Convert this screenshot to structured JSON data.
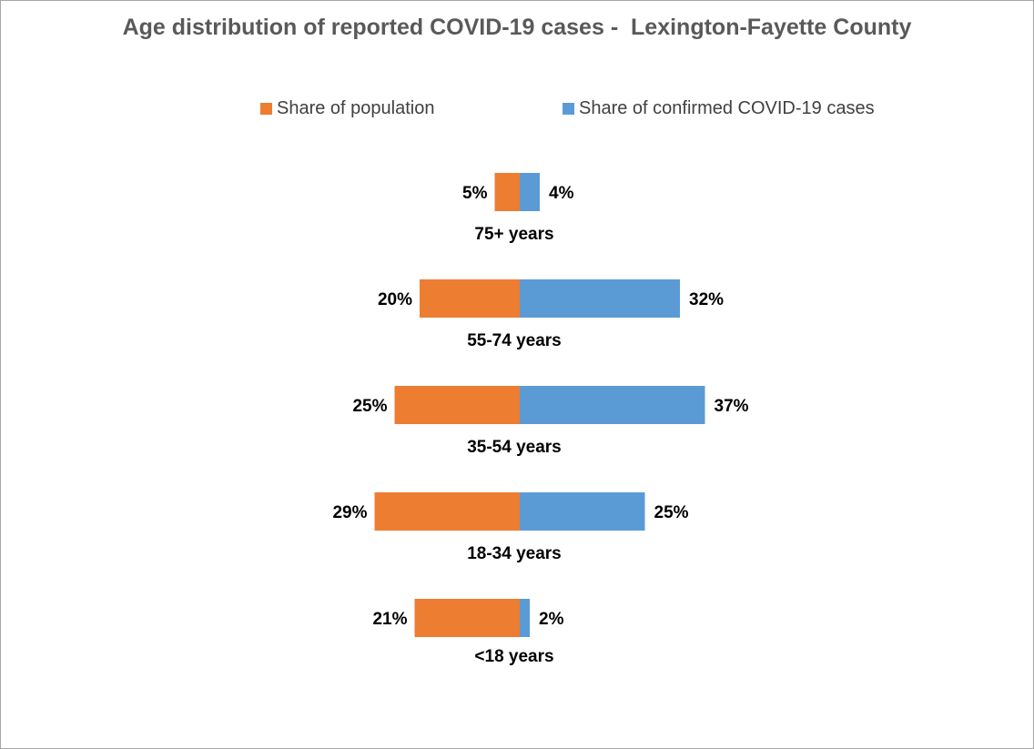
{
  "chart_data": {
    "type": "bar",
    "title": "Age distribution of reported COVID-19 cases -  Lexington-Fayette County",
    "categories": [
      "75+ years",
      "55-74 years",
      "35-54 years",
      "18-34 years",
      "<18 years"
    ],
    "series": [
      {
        "name": "Share of population",
        "values": [
          5,
          20,
          25,
          29,
          21
        ],
        "labels": [
          "5%",
          "20%",
          "25%",
          "29%",
          "21%"
        ],
        "color": "#ed7d31"
      },
      {
        "name": "Share of confirmed COVID-19 cases",
        "values": [
          4,
          32,
          37,
          25,
          2
        ],
        "labels": [
          "4%",
          "32%",
          "37%",
          "25%",
          "2%"
        ],
        "color": "#5b9bd5"
      }
    ],
    "orientation": "horizontal-diverging",
    "unit": "%",
    "legend_position": "top",
    "grid": false
  }
}
